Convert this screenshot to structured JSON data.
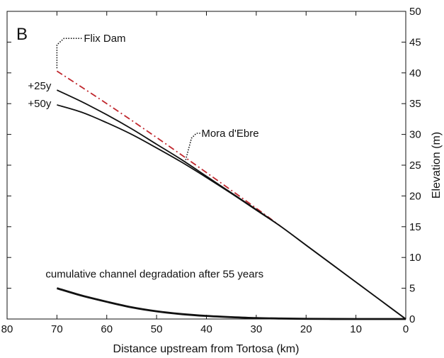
{
  "chart_data": {
    "type": "line",
    "panel_label": "B",
    "xlabel": "Distance upstream from Tortosa (km)",
    "ylabel": "Elevation (m)",
    "xlim": [
      80,
      0
    ],
    "ylim": [
      0,
      50
    ],
    "x_ticks": [
      80,
      70,
      60,
      50,
      40,
      30,
      20,
      10,
      0
    ],
    "y_ticks": [
      0,
      5,
      10,
      15,
      20,
      25,
      30,
      35,
      40,
      45,
      50
    ],
    "grid": false,
    "series": [
      {
        "name": "",
        "color": "#c0272d",
        "style": "dash-dot",
        "x": [
          70,
          60,
          50,
          40,
          30,
          25
        ],
        "y": [
          40.3,
          35.0,
          29.5,
          23.8,
          18.0,
          15.0
        ]
      },
      {
        "name": "+25y",
        "color": "#111111",
        "style": "solid",
        "x": [
          70,
          65,
          60,
          55,
          50,
          45,
          40,
          35,
          30,
          25,
          20,
          15,
          10,
          5,
          0
        ],
        "y": [
          37.2,
          35.3,
          33.2,
          30.9,
          28.4,
          25.9,
          23.2,
          20.5,
          17.8,
          15.0,
          12.0,
          9.0,
          6.0,
          3.0,
          0
        ]
      },
      {
        "name": "+50y",
        "color": "#111111",
        "style": "solid",
        "x": [
          70,
          65,
          60,
          55,
          50,
          45,
          40,
          35,
          30,
          25,
          20,
          15,
          10,
          5,
          0
        ],
        "y": [
          34.8,
          33.6,
          31.9,
          30.0,
          27.8,
          25.5,
          23.0,
          20.4,
          17.7,
          15.0,
          12.0,
          9.0,
          6.0,
          3.0,
          0
        ]
      },
      {
        "name": "cumulative channel degradation after 55 years",
        "color": "#111111",
        "style": "solid-thick",
        "x": [
          70,
          65,
          60,
          55,
          50,
          45,
          40,
          35,
          30,
          25,
          20,
          15,
          10,
          5,
          0
        ],
        "y": [
          5.0,
          3.8,
          2.8,
          1.9,
          1.25,
          0.8,
          0.5,
          0.3,
          0.15,
          0.08,
          0.03,
          0.01,
          0,
          0,
          0
        ]
      }
    ],
    "annotations": [
      {
        "text": "Flix Dam",
        "x": 70,
        "y": 40.3
      },
      {
        "text": "Mora d'Ebre",
        "x": 44,
        "y": 25.0
      }
    ]
  }
}
